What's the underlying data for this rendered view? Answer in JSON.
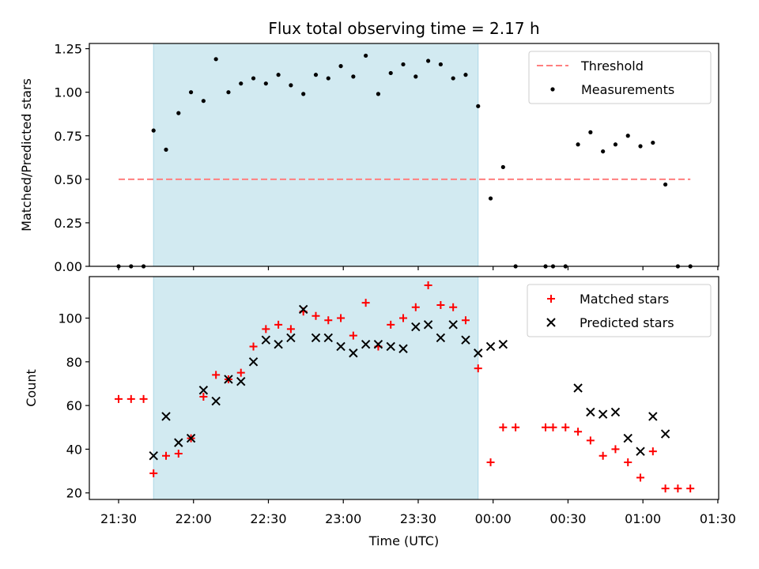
{
  "title": "Flux total observing time = 2.17 h",
  "x_tick_labels": [
    "21:30",
    "22:00",
    "22:30",
    "23:00",
    "23:30",
    "00:00",
    "00:30",
    "01:00",
    "01:30"
  ],
  "colors": {
    "threshold": "#ff7f7f",
    "measurements": "#000000",
    "matched": "#ff0000",
    "predicted": "#000000",
    "highlight": "#add8e6"
  },
  "chart_data": [
    {
      "type": "scatter",
      "ylabel": "Matched/Predicted stars",
      "xlabel": "",
      "ylim": [
        0,
        1.28
      ],
      "y_ticks": [
        0.0,
        0.25,
        0.5,
        0.75,
        1.0,
        1.25
      ],
      "y_tick_labels": [
        "0.00",
        "0.25",
        "0.50",
        "0.75",
        "1.00",
        "1.25"
      ],
      "legend": [
        "Threshold",
        "Measurements"
      ],
      "legend_position": "top-right",
      "highlight_span": [
        "21:44",
        "23:54"
      ],
      "threshold": {
        "name": "Threshold",
        "y": 0.5,
        "x_start": "21:30",
        "x_end": "01:19",
        "style": "dashed"
      },
      "series": [
        {
          "name": "Measurements",
          "points": [
            [
              "21:30",
              0.0
            ],
            [
              "21:35",
              0.0
            ],
            [
              "21:40",
              0.0
            ],
            [
              "21:44",
              0.78
            ],
            [
              "21:49",
              0.67
            ],
            [
              "21:54",
              0.88
            ],
            [
              "21:59",
              1.0
            ],
            [
              "22:04",
              0.95
            ],
            [
              "22:09",
              1.19
            ],
            [
              "22:14",
              1.0
            ],
            [
              "22:19",
              1.05
            ],
            [
              "22:24",
              1.08
            ],
            [
              "22:29",
              1.05
            ],
            [
              "22:34",
              1.1
            ],
            [
              "22:39",
              1.04
            ],
            [
              "22:44",
              0.99
            ],
            [
              "22:49",
              1.1
            ],
            [
              "22:54",
              1.08
            ],
            [
              "22:59",
              1.15
            ],
            [
              "23:04",
              1.09
            ],
            [
              "23:09",
              1.21
            ],
            [
              "23:14",
              0.99
            ],
            [
              "23:19",
              1.11
            ],
            [
              "23:24",
              1.16
            ],
            [
              "23:29",
              1.09
            ],
            [
              "23:34",
              1.18
            ],
            [
              "23:39",
              1.16
            ],
            [
              "23:44",
              1.08
            ],
            [
              "23:49",
              1.1
            ],
            [
              "23:54",
              0.92
            ],
            [
              "23:59",
              0.39
            ],
            [
              "00:04",
              0.57
            ],
            [
              "00:09",
              0.0
            ],
            [
              "00:21",
              0.0
            ],
            [
              "00:24",
              0.0
            ],
            [
              "00:29",
              0.0
            ],
            [
              "00:34",
              0.7
            ],
            [
              "00:39",
              0.77
            ],
            [
              "00:44",
              0.66
            ],
            [
              "00:49",
              0.7
            ],
            [
              "00:54",
              0.75
            ],
            [
              "00:59",
              0.69
            ],
            [
              "01:04",
              0.71
            ],
            [
              "01:09",
              0.47
            ],
            [
              "01:14",
              0.0
            ],
            [
              "01:19",
              0.0
            ]
          ]
        }
      ]
    },
    {
      "type": "scatter",
      "ylabel": "Count",
      "xlabel": "Time (UTC)",
      "ylim": [
        17,
        119
      ],
      "y_ticks": [
        20,
        40,
        60,
        80,
        100
      ],
      "y_tick_labels": [
        "20",
        "40",
        "60",
        "80",
        "100"
      ],
      "legend": [
        "Matched stars",
        "Predicted stars"
      ],
      "legend_position": "top-right",
      "highlight_span": [
        "21:44",
        "23:54"
      ],
      "series": [
        {
          "name": "Matched stars",
          "points": [
            [
              "21:30",
              63
            ],
            [
              "21:35",
              63
            ],
            [
              "21:40",
              63
            ],
            [
              "21:44",
              29
            ],
            [
              "21:49",
              37
            ],
            [
              "21:54",
              38
            ],
            [
              "21:59",
              45
            ],
            [
              "22:04",
              64
            ],
            [
              "22:09",
              74
            ],
            [
              "22:14",
              72
            ],
            [
              "22:19",
              75
            ],
            [
              "22:24",
              87
            ],
            [
              "22:29",
              95
            ],
            [
              "22:34",
              97
            ],
            [
              "22:39",
              95
            ],
            [
              "22:44",
              103
            ],
            [
              "22:49",
              101
            ],
            [
              "22:54",
              99
            ],
            [
              "22:59",
              100
            ],
            [
              "23:04",
              92
            ],
            [
              "23:09",
              107
            ],
            [
              "23:14",
              87
            ],
            [
              "23:19",
              97
            ],
            [
              "23:24",
              100
            ],
            [
              "23:29",
              105
            ],
            [
              "23:34",
              115
            ],
            [
              "23:39",
              106
            ],
            [
              "23:44",
              105
            ],
            [
              "23:49",
              99
            ],
            [
              "23:54",
              77
            ],
            [
              "23:59",
              34
            ],
            [
              "00:04",
              50
            ],
            [
              "00:09",
              50
            ],
            [
              "00:21",
              50
            ],
            [
              "00:24",
              50
            ],
            [
              "00:29",
              50
            ],
            [
              "00:34",
              48
            ],
            [
              "00:39",
              44
            ],
            [
              "00:44",
              37
            ],
            [
              "00:49",
              40
            ],
            [
              "00:54",
              34
            ],
            [
              "00:59",
              27
            ],
            [
              "01:04",
              39
            ],
            [
              "01:09",
              22
            ],
            [
              "01:14",
              22
            ],
            [
              "01:19",
              22
            ]
          ]
        },
        {
          "name": "Predicted stars",
          "points": [
            [
              "21:44",
              37
            ],
            [
              "21:49",
              55
            ],
            [
              "21:54",
              43
            ],
            [
              "21:59",
              45
            ],
            [
              "22:04",
              67
            ],
            [
              "22:09",
              62
            ],
            [
              "22:14",
              72
            ],
            [
              "22:19",
              71
            ],
            [
              "22:24",
              80
            ],
            [
              "22:29",
              90
            ],
            [
              "22:34",
              88
            ],
            [
              "22:39",
              91
            ],
            [
              "22:44",
              104
            ],
            [
              "22:49",
              91
            ],
            [
              "22:54",
              91
            ],
            [
              "22:59",
              87
            ],
            [
              "23:04",
              84
            ],
            [
              "23:09",
              88
            ],
            [
              "23:14",
              88
            ],
            [
              "23:19",
              87
            ],
            [
              "23:24",
              86
            ],
            [
              "23:29",
              96
            ],
            [
              "23:34",
              97
            ],
            [
              "23:39",
              91
            ],
            [
              "23:44",
              97
            ],
            [
              "23:49",
              90
            ],
            [
              "23:54",
              84
            ],
            [
              "23:59",
              87
            ],
            [
              "00:04",
              88
            ],
            [
              "00:34",
              68
            ],
            [
              "00:39",
              57
            ],
            [
              "00:44",
              56
            ],
            [
              "00:49",
              57
            ],
            [
              "00:54",
              45
            ],
            [
              "00:59",
              39
            ],
            [
              "01:04",
              55
            ],
            [
              "01:09",
              47
            ]
          ]
        }
      ]
    }
  ]
}
